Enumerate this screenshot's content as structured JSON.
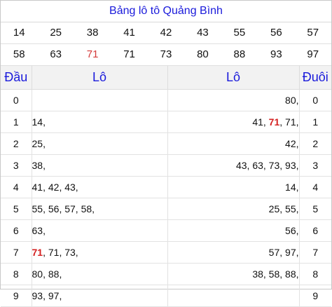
{
  "title": "Bảng lô tô Quảng Bình",
  "numbers_row1": [
    "14",
    "25",
    "38",
    "41",
    "42",
    "43",
    "55",
    "56",
    "57"
  ],
  "numbers_row2": [
    "58",
    "63",
    "71",
    "71",
    "73",
    "80",
    "88",
    "93",
    "97"
  ],
  "highlight_color": "#d43a3a",
  "headers": {
    "dau": "Đầu",
    "lo_left": "Lô",
    "lo_right": "Lô",
    "duoi": "Đuôi"
  },
  "rows": [
    {
      "dau": "0",
      "left": [],
      "right": [
        "80"
      ],
      "duoi": "0"
    },
    {
      "dau": "1",
      "left": [
        "14"
      ],
      "right": [
        "41",
        "71",
        "71"
      ],
      "duoi": "1"
    },
    {
      "dau": "2",
      "left": [
        "25"
      ],
      "right": [
        "42"
      ],
      "duoi": "2"
    },
    {
      "dau": "3",
      "left": [
        "38"
      ],
      "right": [
        "43",
        "63",
        "73",
        "93"
      ],
      "duoi": "3"
    },
    {
      "dau": "4",
      "left": [
        "41",
        "42",
        "43"
      ],
      "right": [
        "14"
      ],
      "duoi": "4"
    },
    {
      "dau": "5",
      "left": [
        "55",
        "56",
        "57",
        "58"
      ],
      "right": [
        "25",
        "55"
      ],
      "duoi": "5"
    },
    {
      "dau": "6",
      "left": [
        "63"
      ],
      "right": [
        "56"
      ],
      "duoi": "6"
    },
    {
      "dau": "7",
      "left": [
        "71",
        "71",
        "73"
      ],
      "right": [
        "57",
        "97"
      ],
      "duoi": "7"
    },
    {
      "dau": "8",
      "left": [
        "80",
        "88"
      ],
      "right": [
        "38",
        "58",
        "88"
      ],
      "duoi": "8"
    },
    {
      "dau": "9",
      "left": [
        "93",
        "97"
      ],
      "right": [],
      "duoi": "9"
    }
  ]
}
